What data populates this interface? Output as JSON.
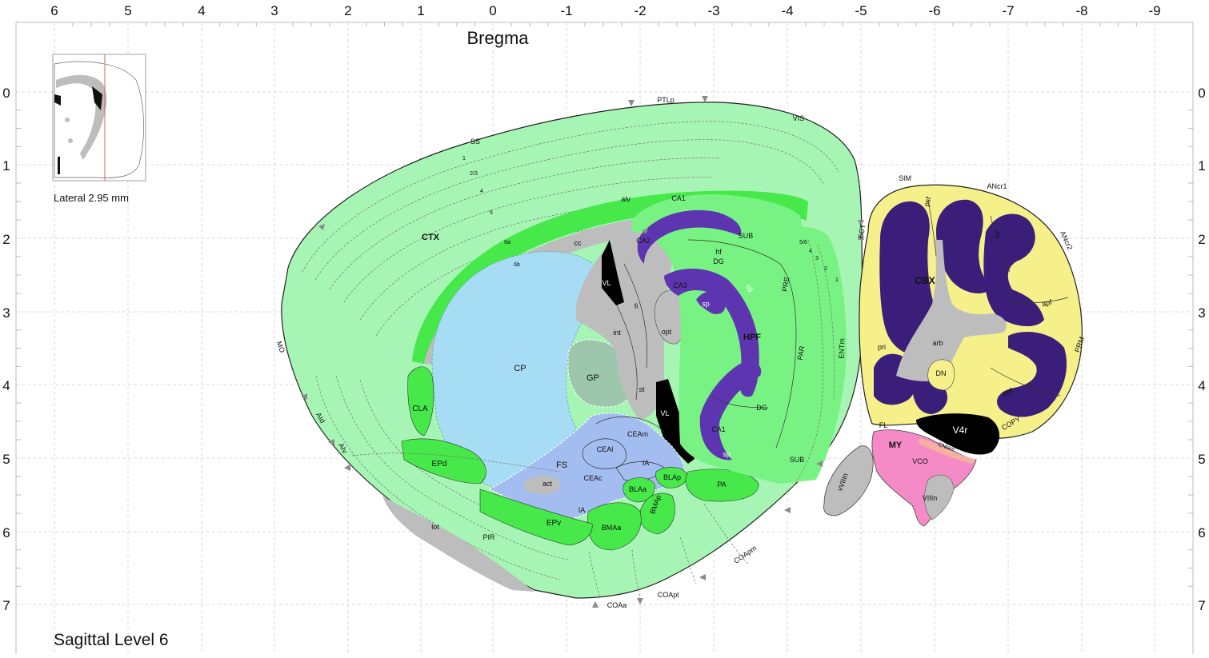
{
  "figure": {
    "title": "Sagittal Level 6",
    "bregma_label": "Bregma",
    "inset_caption": "Lateral 2.95 mm",
    "x_ticks": [
      "6",
      "5",
      "4",
      "3",
      "2",
      "1",
      "0",
      "-1",
      "-2",
      "-3",
      "-4",
      "-5",
      "-6",
      "-7",
      "-8",
      "-9"
    ],
    "y_ticks": [
      "0",
      "1",
      "2",
      "3",
      "4",
      "5",
      "6",
      "7"
    ]
  },
  "colors": {
    "cortex": "#a6f5b4",
    "cortex_bright": "#46e84a",
    "hippocampus": "#78f283",
    "fiber_tract": "#bdbdbd",
    "ventricle": "#000000",
    "striatum": "#a7dcf5",
    "amygdala": "#a3bdf0",
    "pallidum": "#9cc7ad",
    "dentate": "#5d35b0",
    "cerebellum": "#f5f08a",
    "cerebellum_gc": "#3a1e7a",
    "medulla": "#f58bc6"
  },
  "regions": {
    "ctx": "CTX",
    "ss": "SS",
    "ptlp": "PTLp",
    "vis": "VIS",
    "mo": "MO",
    "aid": "AId",
    "aiv": "AIv",
    "ectl": "ECT",
    "entm": "ENTm",
    "layer1": "1",
    "layer23": "2/3",
    "layer4": "4",
    "layer5": "5",
    "layer6a": "6a",
    "layer6b": "6b",
    "cc": "cc",
    "alv": "alv",
    "ca1": "CA1",
    "ca2": "CA2",
    "ca3": "CA3",
    "sub": "SUB",
    "hf": "hf",
    "dg": "DG",
    "sg": "sg",
    "sp": "sp",
    "pre": "PRE",
    "par": "PAR",
    "hpf": "HPF",
    "layer56": "5/6",
    "l4": "4",
    "l3": "3",
    "l2": "2",
    "l1": "1",
    "vl": "VL",
    "fi": "fi",
    "int": "int",
    "opt": "opt",
    "st": "st",
    "cp": "CP",
    "gp": "GP",
    "cla": "CLA",
    "epd": "EPd",
    "epv": "EPv",
    "fs": "FS",
    "act": "act",
    "ceam": "CEAm",
    "ceal": "CEAl",
    "ceac": "CEAc",
    "ia": "IA",
    "blaa": "BLAa",
    "blap": "BLAp",
    "bmaa": "BMAa",
    "bmap": "BMAp",
    "pa": "PA",
    "lot": "lot",
    "pir": "PIR",
    "coaa": "COAa",
    "coapl": "COApl",
    "coapm": "COApm",
    "cbx": "CBX",
    "sim": "SIM",
    "psf": "psf",
    "ancr1": "ANcr1",
    "ancr2": "ANcr2",
    "icf": "icf",
    "apf": "apf",
    "prm": "PRM",
    "ppf": "ppf",
    "arb": "arb",
    "dn": "DN",
    "pri": "pri",
    "fl": "FL",
    "v4r": "V4r",
    "copy": "COPY",
    "my": "MY",
    "cnlam": "CNlam",
    "vco": "VCO",
    "viiin": "VIIIn",
    "vviiin": "vVIIIn"
  }
}
